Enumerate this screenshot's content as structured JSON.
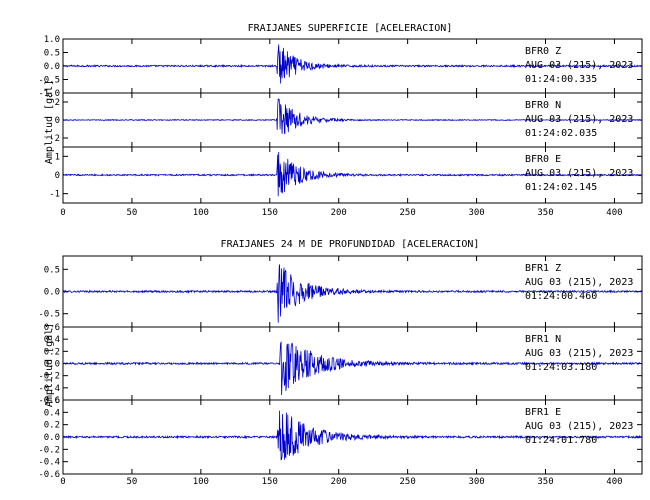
{
  "colors": {
    "trace": "#0000cc",
    "axes": "#000000",
    "background": "#ffffff"
  },
  "chart_data": [
    {
      "type": "line",
      "title": "FRAIJANES SUPERFICIE [ACELERACION]",
      "ylabel": "Amplitud [gal]",
      "xlim": [
        0,
        420
      ],
      "xticks": [
        0,
        50,
        100,
        150,
        200,
        250,
        300,
        350,
        400
      ],
      "series": [
        {
          "station": "BFR0",
          "component": "Z",
          "date": "AUG 03 (215), 2023",
          "time": "01:24:00.335",
          "ylim": [
            -1.0,
            1.0
          ],
          "yticks": [
            -1.0,
            -0.5,
            0.0,
            0.5,
            1.0
          ],
          "event": {
            "onset_s": 155,
            "peak": 1.0,
            "decay_s": 12,
            "noise": 0.03
          }
        },
        {
          "station": "BFR0",
          "component": "N",
          "date": "AUG 03 (215), 2023",
          "time": "01:24:02.035",
          "ylim": [
            -3,
            3
          ],
          "yticks": [
            -2,
            0,
            2
          ],
          "event": {
            "onset_s": 155,
            "peak": 2.8,
            "decay_s": 13,
            "noise": 0.05
          }
        },
        {
          "station": "BFR0",
          "component": "E",
          "date": "AUG 03 (215), 2023",
          "time": "01:24:02.145",
          "ylim": [
            -1.5,
            1.5
          ],
          "yticks": [
            -1,
            0,
            1
          ],
          "event": {
            "onset_s": 155,
            "peak": 1.5,
            "decay_s": 14,
            "noise": 0.04
          }
        }
      ]
    },
    {
      "type": "line",
      "title": "FRAIJANES 24 M DE PROFUNDIDAD [ACELERACION]",
      "ylabel": "Amplitud [gal]",
      "xlim": [
        0,
        420
      ],
      "xticks": [
        0,
        50,
        100,
        150,
        200,
        250,
        300,
        350,
        400
      ],
      "series": [
        {
          "station": "BFR1",
          "component": "Z",
          "date": "AUG 03 (215), 2023",
          "time": "01:24:00.460",
          "ylim": [
            -0.8,
            0.8
          ],
          "yticks": [
            -0.5,
            0.0,
            0.5
          ],
          "event": {
            "onset_s": 155,
            "peak": 0.78,
            "decay_s": 16,
            "noise": 0.02
          }
        },
        {
          "station": "BFR1",
          "component": "N",
          "date": "AUG 03 (215), 2023",
          "time": "01:24:03.180",
          "ylim": [
            -0.6,
            0.6
          ],
          "yticks": [
            -0.6,
            -0.4,
            -0.2,
            0.0,
            0.2,
            0.4,
            0.6
          ],
          "event": {
            "onset_s": 157,
            "peak": 0.55,
            "decay_s": 22,
            "noise": 0.015
          }
        },
        {
          "station": "BFR1",
          "component": "E",
          "date": "AUG 03 (215), 2023",
          "time": "01:24:01.780",
          "ylim": [
            -0.6,
            0.6
          ],
          "yticks": [
            -0.6,
            -0.4,
            -0.2,
            0.0,
            0.2,
            0.4,
            0.6
          ],
          "event": {
            "onset_s": 155,
            "peak": 0.55,
            "decay_s": 20,
            "noise": 0.015
          }
        }
      ]
    }
  ]
}
